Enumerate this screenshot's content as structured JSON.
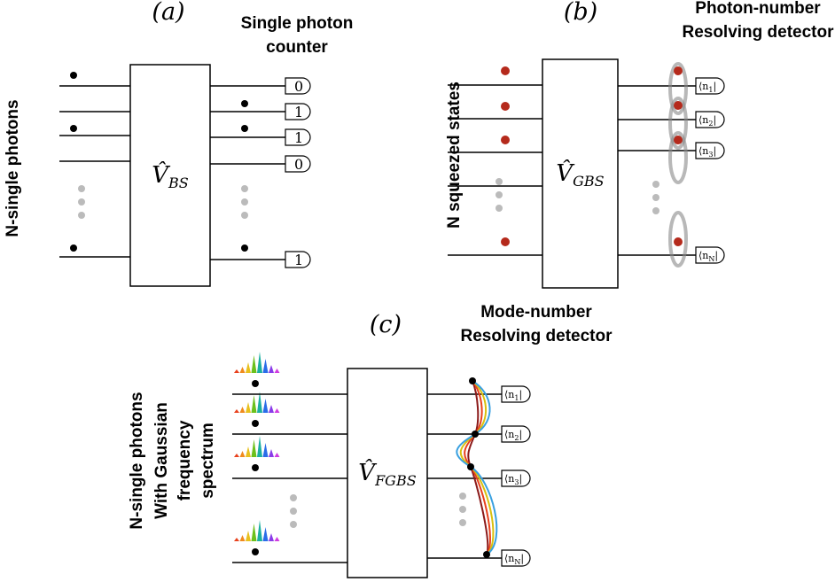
{
  "panels": [
    {
      "label": "(a)",
      "title": [
        "Single photon",
        "counter"
      ],
      "input_label": [
        "N-single photons"
      ],
      "operator": {
        "symbol": "V̂",
        "sub": "BS"
      },
      "detectors": [
        [
          "0"
        ],
        [
          "1"
        ],
        [
          "1"
        ],
        [
          "0"
        ],
        [
          "1"
        ]
      ]
    },
    {
      "label": "(b)",
      "title": [
        "Photon-number",
        "Resolving detector"
      ],
      "input_label": [
        "N squeezed states"
      ],
      "operator": {
        "symbol": "V̂",
        "sub": "GBS"
      },
      "detectors": [
        [
          "⟨n",
          "1",
          "|"
        ],
        [
          "⟨n",
          "2",
          "|"
        ],
        [
          "⟨n",
          "3",
          "|"
        ],
        [
          "⟨n",
          "N",
          "|"
        ]
      ]
    },
    {
      "label": "(c)",
      "title": [
        "Mode-number",
        "Resolving detector"
      ],
      "input_label": [
        "N-single photons",
        "With Gaussian",
        "frequency",
        "spectrum"
      ],
      "operator": {
        "symbol": "V̂",
        "sub": "FGBS"
      },
      "detectors": [
        [
          "⟨n",
          "1",
          "|"
        ],
        [
          "⟨n",
          "2",
          "|"
        ],
        [
          "⟨n",
          "3",
          "|"
        ],
        [
          "⟨n",
          "N",
          "|"
        ]
      ]
    }
  ]
}
